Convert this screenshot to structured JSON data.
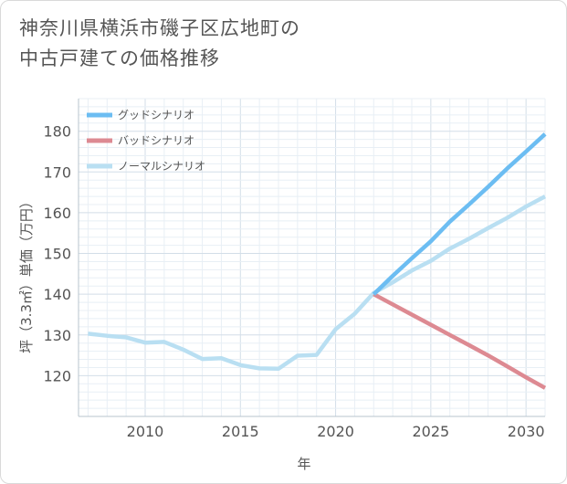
{
  "title_lines": [
    "神奈川県横浜市磯子区広地町の",
    "中古戸建ての価格推移"
  ],
  "chart_data": {
    "type": "line",
    "title": "神奈川県横浜市磯子区広地町の中古戸建ての価格推移",
    "xlabel": "年",
    "ylabel": "坪（3.3㎡）単価（万円）",
    "xlim": [
      2006.5,
      2031
    ],
    "ylim": [
      110,
      188
    ],
    "xticks": [
      2010,
      2015,
      2020,
      2025,
      2030
    ],
    "yticks": [
      120,
      130,
      140,
      150,
      160,
      170,
      180
    ],
    "grid": true,
    "legend_position": "top-left",
    "series": [
      {
        "name": "グッドシナリオ",
        "color": "#6cbdf2",
        "x": [
          2022,
          2023,
          2024,
          2025,
          2026,
          2027,
          2028,
          2029,
          2030,
          2031
        ],
        "y": [
          140,
          144.5,
          148.8,
          153,
          157.8,
          162,
          166.3,
          170.8,
          175,
          179.3
        ]
      },
      {
        "name": "バッドシナリオ",
        "color": "#dd8a92",
        "x": [
          2022,
          2023,
          2024,
          2025,
          2026,
          2027,
          2028,
          2029,
          2030,
          2031
        ],
        "y": [
          140,
          137.5,
          135,
          132.5,
          130,
          127.5,
          125,
          122.3,
          119.6,
          117
        ]
      },
      {
        "name": "ノーマルシナリオ",
        "color": "#b9dff2",
        "x": [
          2007,
          2008,
          2009,
          2010,
          2011,
          2012,
          2013,
          2014,
          2015,
          2016,
          2017,
          2018,
          2019,
          2020,
          2021,
          2022,
          2023,
          2024,
          2025,
          2026,
          2027,
          2028,
          2029,
          2030,
          2031
        ],
        "y": [
          130.3,
          129.8,
          129.4,
          128.1,
          128.3,
          126.4,
          124.1,
          124.3,
          122.6,
          121.8,
          121.7,
          124.9,
          125.1,
          131.4,
          135.2,
          140.3,
          142.9,
          145.8,
          148.2,
          151.2,
          153.6,
          156.2,
          158.7,
          161.5,
          164
        ]
      }
    ]
  }
}
